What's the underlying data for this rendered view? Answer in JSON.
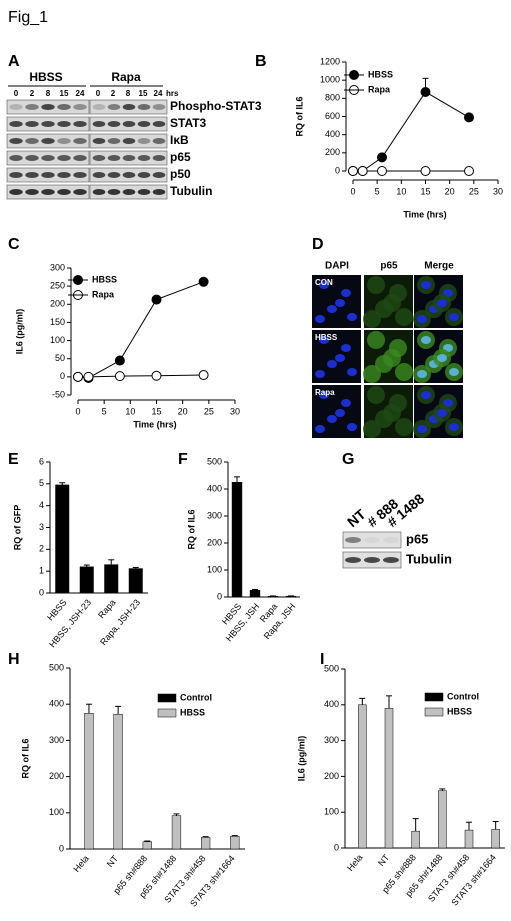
{
  "figure_title": "Fig_1",
  "blot_a": {
    "panel": "A",
    "groups": [
      "HBSS",
      "Rapa"
    ],
    "times": [
      "0",
      "2",
      "8",
      "15",
      "24"
    ],
    "unit": "hrs",
    "proteins": [
      "Phospho-STAT3",
      "STAT3",
      "IκB",
      "p65",
      "p50",
      "Tubulin"
    ]
  },
  "imaging_d": {
    "panel": "D",
    "columns": [
      "DAPI",
      "p65",
      "Merge"
    ],
    "rows": [
      "CON",
      "HBSS",
      "Rapa"
    ]
  },
  "blot_g": {
    "panel": "G",
    "lanes": [
      "NT",
      "# 888",
      "# 1488"
    ],
    "proteins": [
      "p65",
      "Tubulin"
    ]
  },
  "chart_data": [
    {
      "type": "line",
      "panel": "B",
      "ylabel": "RQ of IL6",
      "xlabel": "Time (hrs)",
      "xlim": [
        0,
        30
      ],
      "xticks": [
        0,
        5,
        10,
        15,
        20,
        25,
        30
      ],
      "ylim": [
        0,
        1200
      ],
      "yticks": [
        0,
        200,
        400,
        600,
        800,
        1000,
        1200
      ],
      "series": [
        {
          "name": "HBSS",
          "color": "#000000",
          "x": [
            0,
            2,
            6,
            15,
            24
          ],
          "values": [
            0,
            0,
            150,
            870,
            590
          ],
          "errors": [
            null,
            null,
            null,
            150,
            null
          ]
        },
        {
          "name": "Rapa",
          "color": "#ffffff",
          "x": [
            0,
            2,
            6,
            15,
            24
          ],
          "values": [
            0,
            0,
            0,
            0,
            0
          ]
        }
      ]
    },
    {
      "type": "line",
      "panel": "C",
      "ylabel": "IL6 (pg/ml)",
      "xlabel": "Time (hrs)",
      "xlim": [
        0,
        30
      ],
      "xticks": [
        0,
        5,
        10,
        15,
        20,
        25,
        30
      ],
      "ylim": [
        -50,
        300
      ],
      "yticks": [
        -50,
        0,
        50,
        100,
        150,
        200,
        250,
        300
      ],
      "series": [
        {
          "name": "HBSS",
          "color": "#000000",
          "x": [
            0,
            2,
            8,
            15,
            24
          ],
          "values": [
            0,
            -3,
            45,
            213,
            262
          ]
        },
        {
          "name": "Rapa",
          "color": "#ffffff",
          "x": [
            0,
            2,
            8,
            15,
            24
          ],
          "values": [
            0,
            0,
            2,
            3,
            5
          ]
        }
      ]
    },
    {
      "type": "bar",
      "panel": "E",
      "ylabel": "RQ of GFP",
      "categories": [
        "HBSS",
        "HBSS, JSH-23",
        "Rapa",
        "Rapa, JSH-23"
      ],
      "ylim": [
        0,
        6
      ],
      "yticks": [
        0,
        1,
        2,
        3,
        4,
        5,
        6
      ],
      "series": [
        {
          "color": "#000000",
          "values": [
            4.95,
            1.2,
            1.3,
            1.12
          ],
          "errors": [
            0.1,
            0.08,
            0.22,
            0.05
          ]
        }
      ]
    },
    {
      "type": "bar",
      "panel": "F",
      "ylabel": "RQ of IL6",
      "categories": [
        "HBSS",
        "HBSS, JSH",
        "Rapa",
        "Rapa, JSH"
      ],
      "ylim": [
        0,
        500
      ],
      "yticks": [
        0,
        100,
        200,
        300,
        400,
        500
      ],
      "series": [
        {
          "color": "#000000",
          "values": [
            425,
            25,
            3,
            3
          ],
          "errors": [
            20,
            3,
            1,
            1
          ]
        }
      ]
    },
    {
      "type": "bar",
      "panel": "H",
      "ylabel": "RQ of IL6",
      "categories": [
        "Hela",
        "NT",
        "p65 sh#888",
        "p65 sh#1488",
        "STAT3 sh#458",
        "STAT3 sh#1664"
      ],
      "ylim": [
        0,
        500
      ],
      "yticks": [
        0,
        100,
        200,
        300,
        400,
        500
      ],
      "series": [
        {
          "name": "Control",
          "color": "#000000",
          "values": [
            null,
            null,
            null,
            null,
            null,
            null
          ]
        },
        {
          "name": "HBSS",
          "color": "#c0c0c0",
          "values": [
            375,
            372,
            20,
            92,
            32,
            35
          ],
          "errors": [
            25,
            22,
            2,
            5,
            2,
            2
          ]
        }
      ]
    },
    {
      "type": "bar",
      "panel": "I",
      "ylabel": "IL6 (pg/ml)",
      "categories": [
        "Hela",
        "NT",
        "p65 sh#888",
        "p65 sh#1488",
        "STAT3 sh#458",
        "STAT3 sh#1664"
      ],
      "ylim": [
        0,
        500
      ],
      "yticks": [
        0,
        100,
        200,
        300,
        400,
        500
      ],
      "series": [
        {
          "name": "Control",
          "color": "#000000",
          "values": [
            null,
            null,
            null,
            null,
            null,
            null
          ]
        },
        {
          "name": "HBSS",
          "color": "#c0c0c0",
          "values": [
            400,
            390,
            47,
            160,
            50,
            52
          ],
          "errors": [
            18,
            35,
            35,
            5,
            22,
            22
          ]
        }
      ]
    }
  ]
}
